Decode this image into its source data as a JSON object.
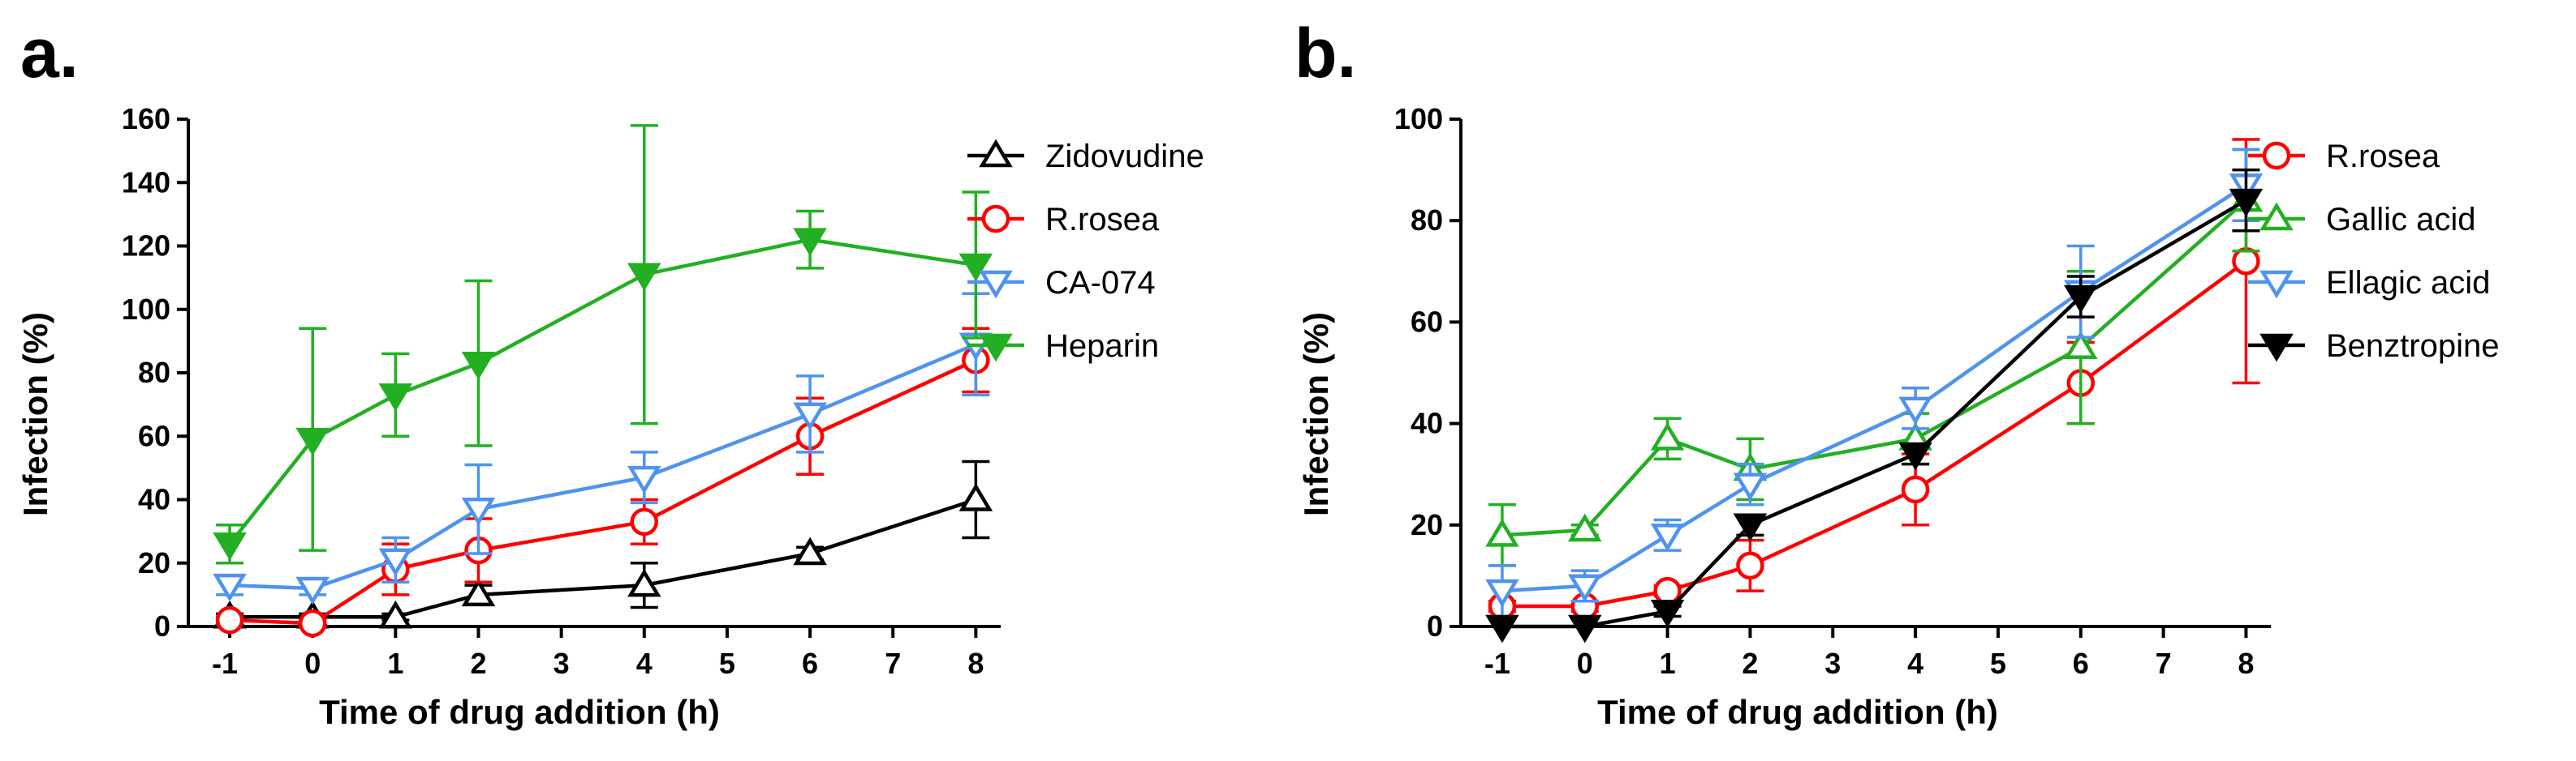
{
  "chart_data": [
    {
      "type": "line",
      "panel_label": "a.",
      "xlabel": "Time of drug addition (h)",
      "ylabel": "Infection (%)",
      "x_ticks": [
        -1,
        0,
        1,
        2,
        3,
        4,
        5,
        6,
        7,
        8
      ],
      "y_ticks": [
        0,
        20,
        40,
        60,
        80,
        100,
        120,
        140,
        160
      ],
      "xlim": [
        -1.5,
        8.3
      ],
      "ylim": [
        0,
        160
      ],
      "legend_position": "right",
      "series": [
        {
          "name": "Zidovudine",
          "color": "#000000",
          "marker": "triangle-up-open",
          "x": [
            -1,
            0,
            1,
            2,
            4,
            6,
            8
          ],
          "y": [
            3,
            3,
            3,
            10,
            13,
            23,
            40
          ],
          "err": [
            1,
            1,
            1,
            3,
            7,
            2,
            12
          ]
        },
        {
          "name": "R.rosea",
          "color": "#ff0000",
          "marker": "circle-open",
          "x": [
            -1,
            0,
            1,
            2,
            4,
            6,
            8
          ],
          "y": [
            2,
            1,
            18,
            24,
            33,
            60,
            84
          ],
          "err": [
            1,
            1,
            8,
            10,
            7,
            12,
            10
          ]
        },
        {
          "name": "CA-074",
          "color": "#4f93f0",
          "marker": "triangle-down-open",
          "x": [
            -1,
            0,
            1,
            2,
            4,
            6,
            8
          ],
          "y": [
            13,
            12,
            21,
            37,
            47,
            67,
            89
          ],
          "err": [
            3,
            2,
            7,
            14,
            8,
            12,
            16
          ]
        },
        {
          "name": "Heparin",
          "color": "#22b022",
          "marker": "triangle-down-filled",
          "x": [
            -1,
            0,
            1,
            2,
            4,
            6,
            8
          ],
          "y": [
            26,
            59,
            73,
            83,
            111,
            122,
            114
          ],
          "err": [
            6,
            35,
            13,
            26,
            47,
            9,
            23
          ]
        }
      ]
    },
    {
      "type": "line",
      "panel_label": "b.",
      "xlabel": "Time of drug addition (h)",
      "ylabel": "Infection (%)",
      "x_ticks": [
        -1,
        0,
        1,
        2,
        3,
        4,
        5,
        6,
        7,
        8
      ],
      "y_ticks": [
        0,
        20,
        40,
        60,
        80,
        100
      ],
      "xlim": [
        -1.5,
        8.3
      ],
      "ylim": [
        0,
        100
      ],
      "legend_position": "right",
      "series": [
        {
          "name": "R.rosea",
          "color": "#ff0000",
          "marker": "circle-open",
          "x": [
            -1,
            0,
            1,
            2,
            4,
            6,
            8
          ],
          "y": [
            4,
            4,
            7,
            12,
            27,
            48,
            72
          ],
          "err": [
            1,
            1,
            1,
            5,
            7,
            8,
            24
          ]
        },
        {
          "name": "Gallic acid",
          "color": "#22b022",
          "marker": "triangle-up-open",
          "x": [
            -1,
            0,
            1,
            2,
            4,
            6,
            8
          ],
          "y": [
            18,
            19,
            37,
            31,
            37,
            55,
            84
          ],
          "err": [
            6,
            1,
            4,
            6,
            5,
            15,
            10
          ]
        },
        {
          "name": "Ellagic acid",
          "color": "#4f93f0",
          "marker": "triangle-down-open",
          "x": [
            -1,
            0,
            1,
            2,
            4,
            6,
            8
          ],
          "y": [
            7,
            8,
            18,
            28,
            43,
            66,
            87
          ],
          "err": [
            5,
            3,
            3,
            4,
            4,
            9,
            7
          ]
        },
        {
          "name": "Benztropine",
          "color": "#000000",
          "marker": "triangle-down-filled",
          "x": [
            -1,
            0,
            1,
            2,
            4,
            6,
            8
          ],
          "y": [
            0,
            0,
            3,
            20,
            34,
            65,
            84
          ],
          "err": [
            0,
            0,
            1,
            2,
            2,
            4,
            6
          ]
        }
      ]
    }
  ]
}
